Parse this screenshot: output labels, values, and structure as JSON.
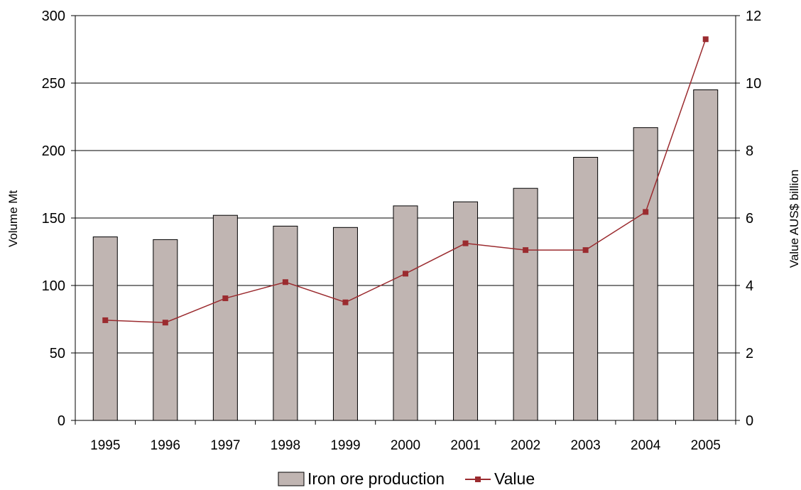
{
  "chart_data": {
    "type": "bar",
    "categories": [
      "1995",
      "1996",
      "1997",
      "1998",
      "1999",
      "2000",
      "2001",
      "2002",
      "2003",
      "2004",
      "2005"
    ],
    "series": [
      {
        "name": "Iron ore production",
        "type": "bar",
        "axis": "left",
        "values": [
          136,
          134,
          152,
          144,
          143,
          159,
          162,
          172,
          195,
          217,
          245
        ],
        "color": "#C0B5B2"
      },
      {
        "name": "Value",
        "type": "line",
        "axis": "right",
        "values": [
          2.97,
          2.9,
          3.62,
          4.1,
          3.5,
          4.35,
          5.25,
          5.05,
          5.05,
          6.18,
          11.3
        ],
        "color": "#9B2B2F"
      }
    ],
    "ylabel": "Volume Mt",
    "y2label": "Value AUS$ billion",
    "ylim": [
      0,
      300
    ],
    "y2lim": [
      0,
      12
    ],
    "yticks": [
      "0",
      "50",
      "100",
      "150",
      "200",
      "250",
      "300"
    ],
    "y2ticks": [
      "0",
      "2",
      "4",
      "6",
      "8",
      "10",
      "12"
    ],
    "grid": true,
    "legend_position": "bottom"
  }
}
